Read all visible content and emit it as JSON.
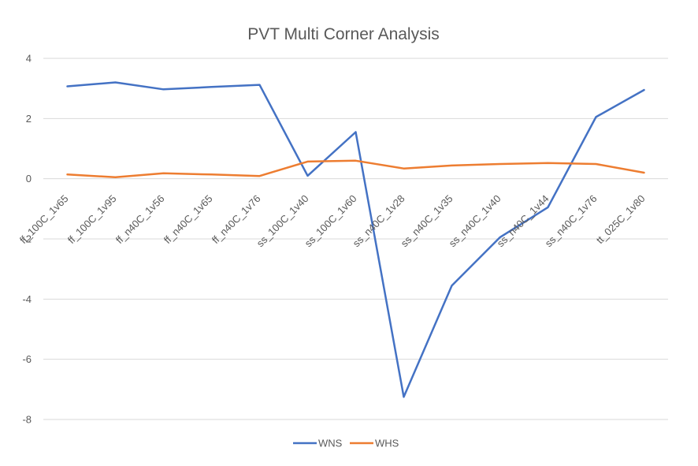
{
  "chart_data": {
    "type": "line",
    "title": "PVT Multi Corner Analysis",
    "xlabel": "",
    "ylabel": "",
    "categories": [
      "ff_100C_1v65",
      "ff_100C_1v95",
      "ff_n40C_1v56",
      "ff_n40C_1v65",
      "ff_n40C_1v76",
      "ss_100C_1v40",
      "ss_100C_1v60",
      "ss_n40C_1v28",
      "ss_n40C_1v35",
      "ss_n40C_1v40",
      "ss_n40C_1v44",
      "ss_n40C_1v76",
      "tt_025C_1v80"
    ],
    "series": [
      {
        "name": "WNS",
        "color": "#4472c4",
        "values": [
          3.07,
          3.2,
          2.97,
          3.05,
          3.12,
          0.1,
          1.55,
          -7.25,
          -3.55,
          -1.95,
          -0.95,
          2.05,
          2.95
        ]
      },
      {
        "name": "WHS",
        "color": "#ed7d31",
        "values": [
          0.14,
          0.05,
          0.18,
          0.14,
          0.09,
          0.57,
          0.6,
          0.34,
          0.44,
          0.49,
          0.52,
          0.49,
          0.2
        ]
      }
    ],
    "ylim": [
      -8,
      4
    ],
    "yticks": [
      -8,
      -6,
      -4,
      -2,
      0,
      2,
      4
    ],
    "grid": true,
    "legend_position": "bottom"
  }
}
